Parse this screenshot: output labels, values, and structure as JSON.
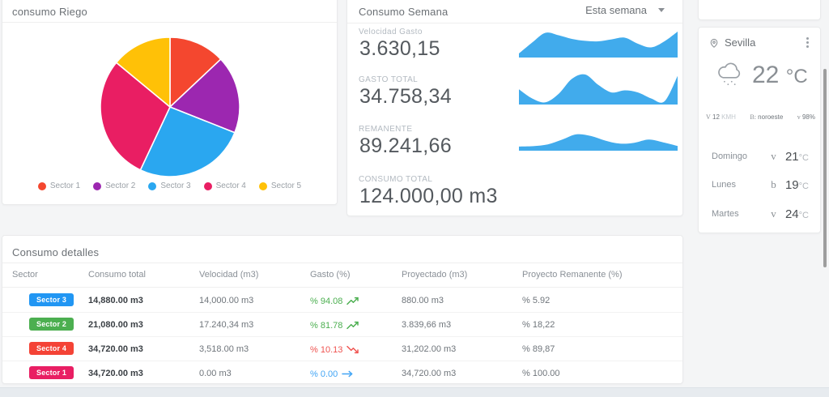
{
  "pie_card": {
    "title": "consumo Riego",
    "legend": [
      {
        "label": "Sector 1",
        "color": "#f4472f"
      },
      {
        "label": "Sector 2",
        "color": "#9c27b0"
      },
      {
        "label": "Sector 3",
        "color": "#2aa7f0"
      },
      {
        "label": "Sector 4",
        "color": "#e91e63"
      },
      {
        "label": "Sector 5",
        "color": "#ffc107"
      }
    ]
  },
  "week_card": {
    "title": "Consumo Semana",
    "range_label": "Esta semana",
    "stats": [
      {
        "label": "Velocidad Gasto",
        "value": "3.630,15"
      },
      {
        "label": "GASTO TOTAL",
        "value": "34.758,34"
      },
      {
        "label": "REMANENTE",
        "value": "89.241,66"
      },
      {
        "label": "CONSUMO TOTAL",
        "value": "124.000,00 m3"
      }
    ]
  },
  "weather": {
    "location": "Sevilla",
    "current_temp": "22",
    "temp_unit": "°C",
    "wind_icon_glyph": "V",
    "wind_value": "12",
    "wind_unit": "KMH",
    "direction_icon_glyph": "B:",
    "direction": "noroeste",
    "humidity_icon_glyph": "v",
    "humidity": "98%",
    "forecast": [
      {
        "day": "Domingo",
        "icon_glyph": "v",
        "temp": "21",
        "unit": "°C"
      },
      {
        "day": "Lunes",
        "icon_glyph": "b",
        "temp": "19",
        "unit": "°C"
      },
      {
        "day": "Martes",
        "icon_glyph": "v",
        "temp": "24",
        "unit": "°C"
      }
    ]
  },
  "table": {
    "title": "Consumo detalles",
    "columns": [
      "Sector",
      "Consumo total",
      "Velocidad (m3)",
      "Gasto (%)",
      "Proyectado (m3)",
      "Proyecto Remanente (%)"
    ],
    "rows": [
      {
        "sector": "Sector 3",
        "badge_color": "#2196f3",
        "consumo_total": "14,880.00 m3",
        "velocidad": "14,000.00 m3",
        "gasto": "% 94.08",
        "trend": "up",
        "trend_color": "#4caf50",
        "proyectado": "880.00 m3",
        "remanente": "% 5.92"
      },
      {
        "sector": "Sector 2",
        "badge_color": "#4caf50",
        "consumo_total": "21,080.00 m3",
        "velocidad": "17.240,34 m3",
        "gasto": "% 81.78",
        "trend": "up",
        "trend_color": "#4caf50",
        "proyectado": "3.839,66 m3",
        "remanente": "% 18,22"
      },
      {
        "sector": "Sector 4",
        "badge_color": "#f44336",
        "consumo_total": "34,720.00 m3",
        "velocidad": "3,518.00 m3",
        "gasto": "% 10.13",
        "trend": "down",
        "trend_color": "#ef5350",
        "proyectado": "31,202.00 m3",
        "remanente": "% 89,87"
      },
      {
        "sector": "Sector 1",
        "badge_color": "#e91e63",
        "consumo_total": "34,720.00 m3",
        "velocidad": "0.00 m3",
        "gasto": "% 0.00",
        "trend": "flat",
        "trend_color": "#42a5f5",
        "proyectado": "34,720.00 m3",
        "remanente": "% 100.00"
      }
    ]
  },
  "chart_data": [
    {
      "type": "pie",
      "title": "consumo Riego",
      "categories": [
        "Sector 1",
        "Sector 2",
        "Sector 3",
        "Sector 4",
        "Sector 5"
      ],
      "values": [
        13,
        18,
        26,
        29,
        14
      ],
      "unit": "percent of total, estimated from slice angles",
      "colors": [
        "#f4472f",
        "#9c27b0",
        "#2aa7f0",
        "#e91e63",
        "#ffc107"
      ],
      "start_angle": "top, clockwise",
      "legend_position": "bottom"
    },
    {
      "type": "area",
      "title": "Velocidad Gasto sparkline",
      "values": [
        0.1,
        0.55,
        0.95,
        0.85,
        0.7,
        0.62,
        0.6,
        0.68,
        0.75,
        0.5,
        0.35,
        0.6,
        1.0
      ],
      "color": "#41abec",
      "axes": "none (sparkline, normalized 0-1)"
    },
    {
      "type": "area",
      "title": "GASTO TOTAL sparkline",
      "values": [
        0.45,
        0.15,
        0.02,
        0.3,
        0.8,
        0.95,
        0.6,
        0.35,
        0.42,
        0.35,
        0.15,
        0.05,
        0.9
      ],
      "color": "#41abec",
      "axes": "none (sparkline, normalized 0-1)"
    },
    {
      "type": "area",
      "title": "REMANENTE sparkline",
      "values": [
        0.12,
        0.14,
        0.22,
        0.45,
        0.7,
        0.62,
        0.4,
        0.26,
        0.3,
        0.45,
        0.32,
        0.15
      ],
      "color": "#41abec",
      "axes": "none (sparkline, normalized 0-1)"
    }
  ]
}
